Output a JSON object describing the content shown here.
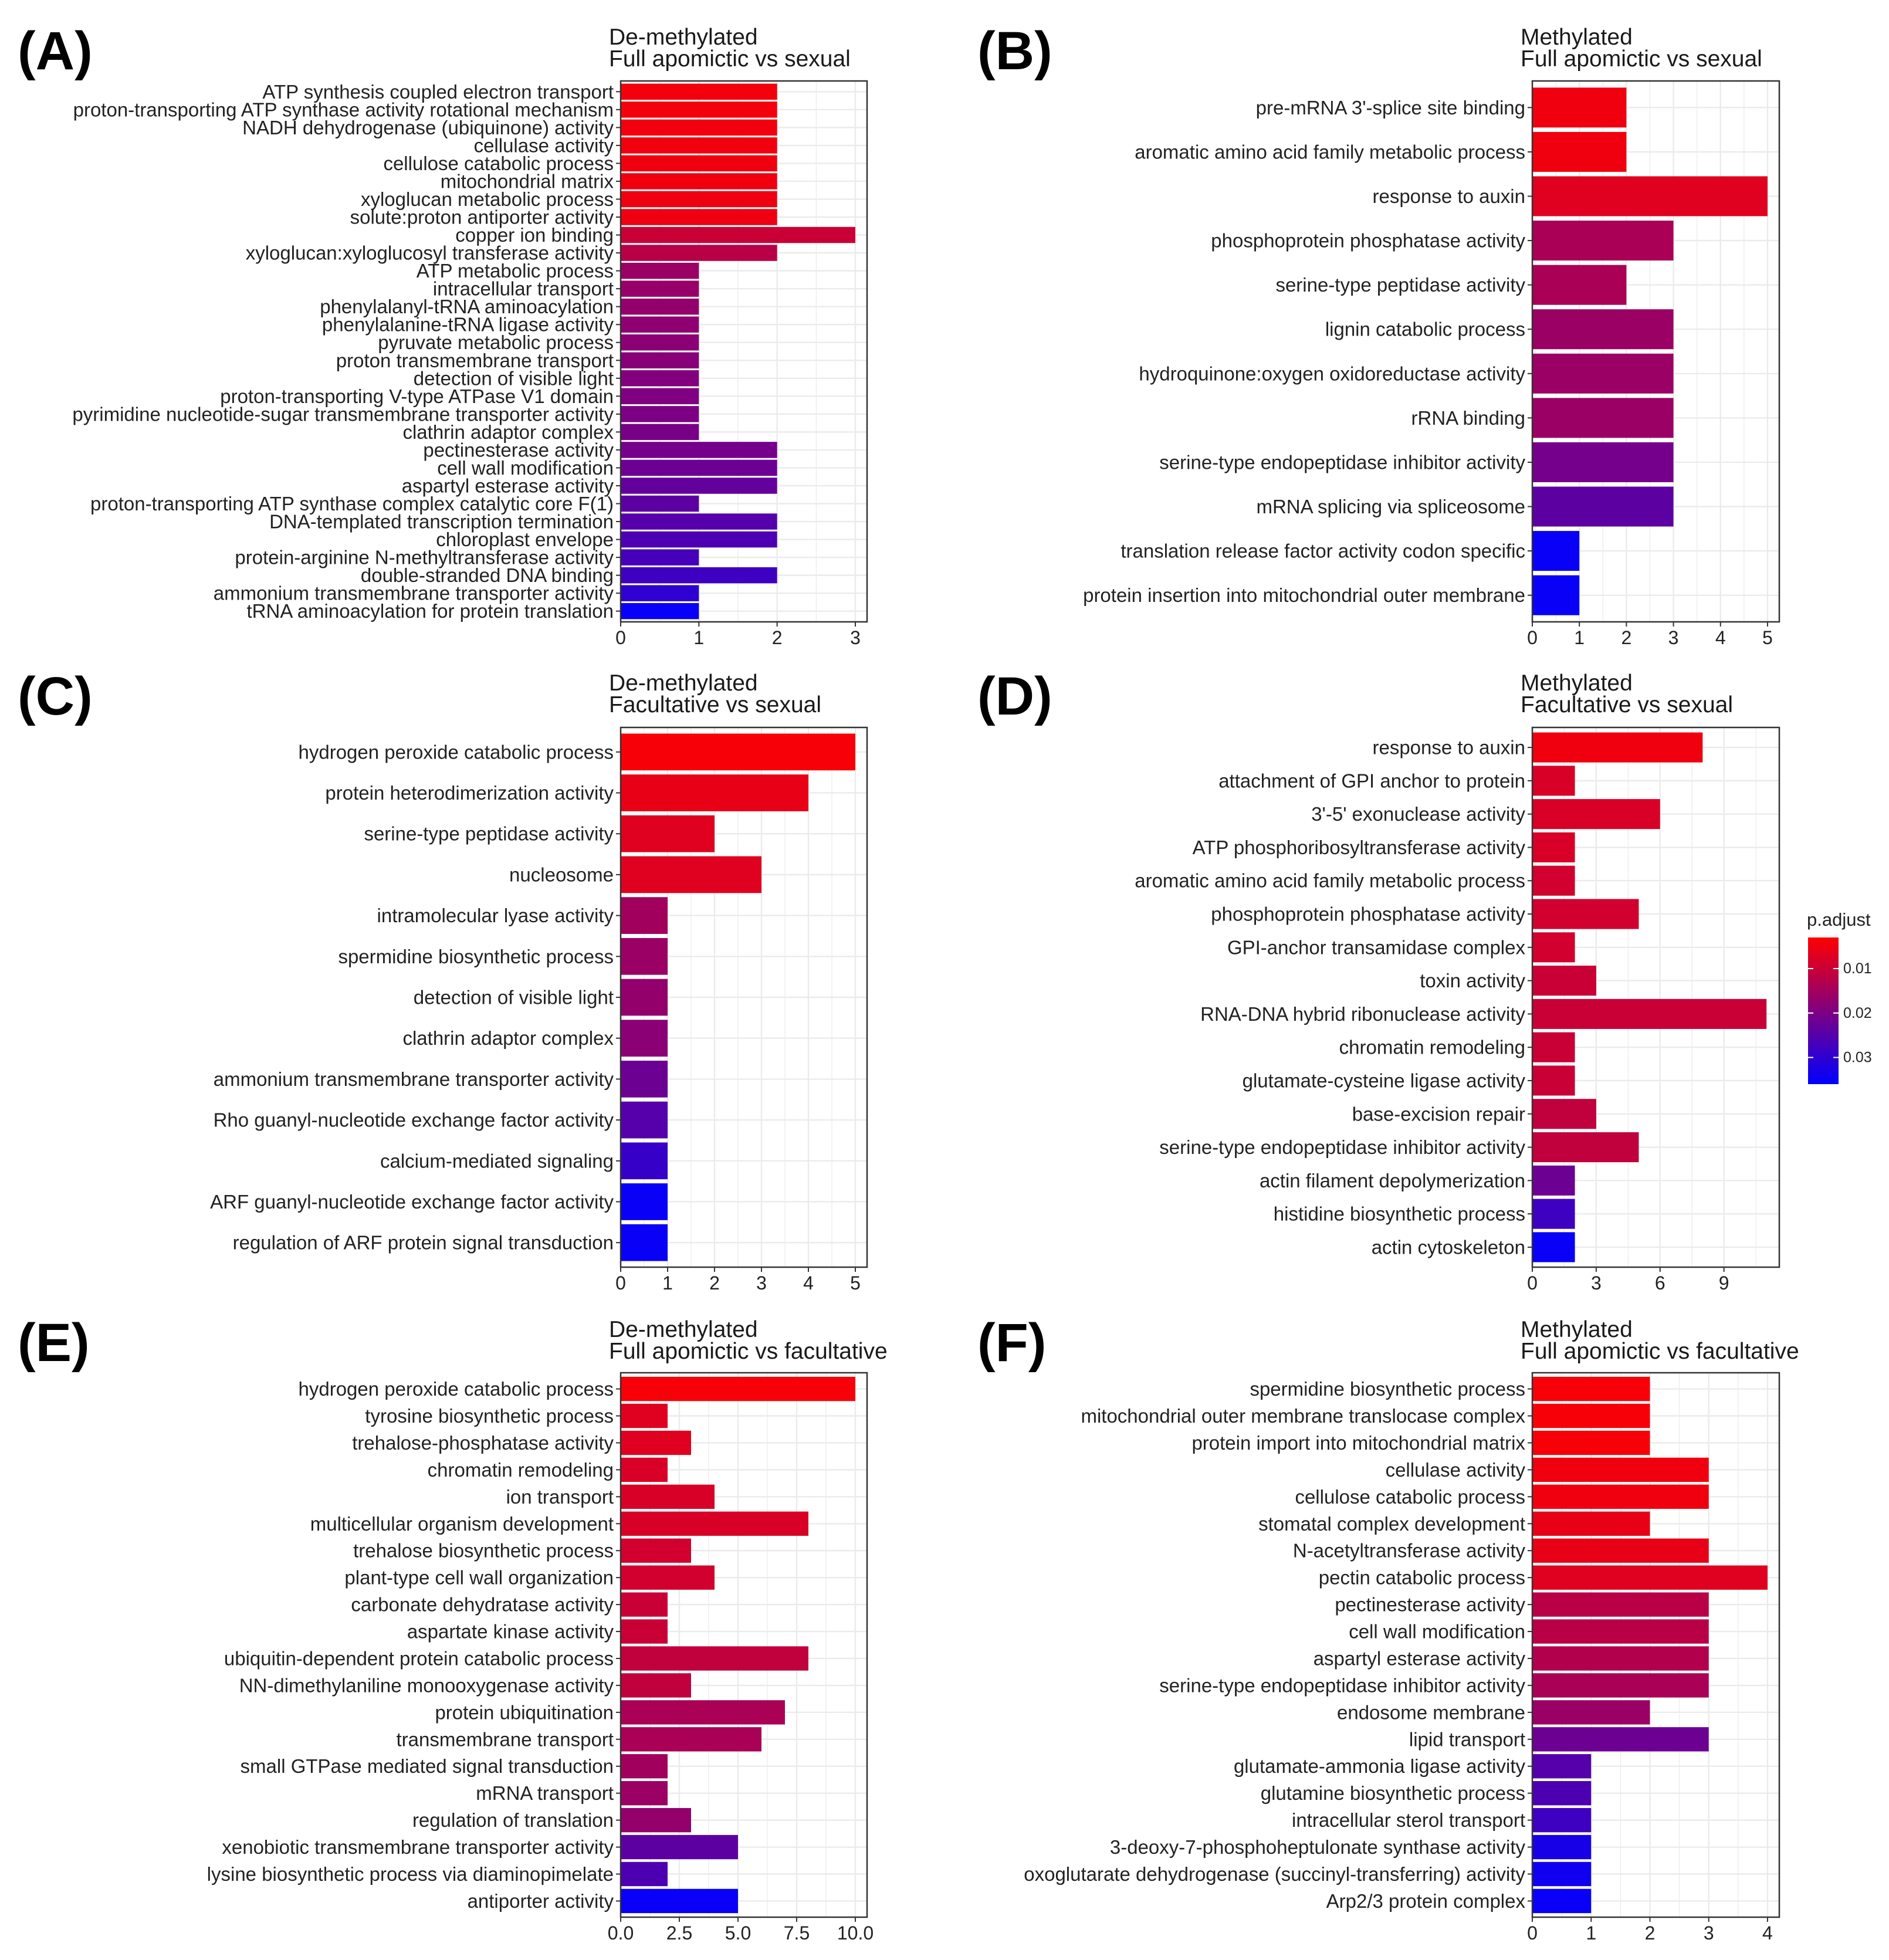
{
  "chart_data": [
    {
      "id": "A",
      "type": "bar",
      "orientation": "horizontal",
      "panel_label": "(A)",
      "title": "De-methylated",
      "subtitle": "Full apomictic vs sexual",
      "xlim": [
        0,
        3.15
      ],
      "xticks": [
        0,
        1,
        2,
        3
      ],
      "xtick_labels": [
        "0",
        "1",
        "2",
        "3"
      ],
      "categories": [
        "ATP synthesis coupled electron transport",
        "proton-transporting ATP synthase activity rotational mechanism",
        "NADH dehydrogenase (ubiquinone) activity",
        "cellulase activity",
        "cellulose catabolic process",
        "mitochondrial matrix",
        "xyloglucan metabolic process",
        "solute:proton antiporter activity",
        "copper ion binding",
        "xyloglucan:xyloglucosyl transferase activity",
        "ATP metabolic process",
        "intracellular transport",
        "phenylalanyl-tRNA aminoacylation",
        "phenylalanine-tRNA ligase activity",
        "pyruvate metabolic process",
        "proton transmembrane transport",
        "detection of visible light",
        "proton-transporting V-type ATPase V1 domain",
        "pyrimidine nucleotide-sugar transmembrane transporter activity",
        "clathrin adaptor complex",
        "pectinesterase activity",
        "cell wall modification",
        "aspartyl esterase activity",
        "proton-transporting ATP synthase complex catalytic core F(1)",
        "DNA-templated transcription termination",
        "chloroplast envelope",
        "protein-arginine N-methyltransferase activity",
        "double-stranded DNA binding",
        "ammonium transmembrane transporter activity",
        "tRNA aminoacylation for protein translation"
      ],
      "values": [
        2,
        2,
        2,
        2,
        2,
        2,
        2,
        2,
        3,
        2,
        1,
        1,
        1,
        1,
        1,
        1,
        1,
        1,
        1,
        1,
        2,
        2,
        2,
        1,
        2,
        2,
        1,
        2,
        1,
        1
      ],
      "p_adjust": [
        0.0045,
        0.0046,
        0.0047,
        0.0048,
        0.0049,
        0.005,
        0.0051,
        0.0052,
        0.01,
        0.012,
        0.016,
        0.0165,
        0.017,
        0.0175,
        0.018,
        0.0185,
        0.019,
        0.0195,
        0.02,
        0.0205,
        0.021,
        0.022,
        0.023,
        0.024,
        0.025,
        0.026,
        0.027,
        0.028,
        0.03,
        0.035
      ]
    },
    {
      "id": "B",
      "type": "bar",
      "orientation": "horizontal",
      "panel_label": "(B)",
      "title": "Methylated",
      "subtitle": "Full apomictic vs sexual",
      "xlim": [
        0,
        5.25
      ],
      "xticks": [
        0,
        1,
        2,
        3,
        4,
        5
      ],
      "xtick_labels": [
        "0",
        "1",
        "2",
        "3",
        "4",
        "5"
      ],
      "categories": [
        "pre-mRNA 3'-splice site binding",
        "aromatic amino acid family metabolic process",
        "response to auxin",
        "phosphoprotein phosphatase activity",
        "serine-type peptidase activity",
        "lignin catabolic process",
        "hydroquinone:oxygen oxidoreductase activity",
        "rRNA binding",
        "serine-type endopeptidase inhibitor activity",
        "mRNA splicing via spliceosome",
        "translation release factor activity codon specific",
        "protein insertion into mitochondrial outer membrane"
      ],
      "values": [
        2,
        2,
        5,
        3,
        2,
        3,
        3,
        3,
        3,
        3,
        1,
        1
      ],
      "p_adjust": [
        0.005,
        0.005,
        0.007,
        0.014,
        0.014,
        0.016,
        0.016,
        0.016,
        0.021,
        0.024,
        0.035,
        0.035
      ]
    },
    {
      "id": "C",
      "type": "bar",
      "orientation": "horizontal",
      "panel_label": "(C)",
      "title": "De-methylated",
      "subtitle": "Facultative vs sexual",
      "xlim": [
        0,
        5.25
      ],
      "xticks": [
        0,
        1,
        2,
        3,
        4,
        5
      ],
      "xtick_labels": [
        "0",
        "1",
        "2",
        "3",
        "4",
        "5"
      ],
      "categories": [
        "hydrogen peroxide catabolic process",
        "protein heterodimerization activity",
        "serine-type peptidase activity",
        "nucleosome",
        "intramolecular lyase activity",
        "spermidine biosynthetic process",
        "detection of visible light",
        "clathrin adaptor complex",
        "ammonium transmembrane transporter activity",
        "Rho guanyl-nucleotide exchange factor activity",
        "calcium-mediated signaling",
        "ARF guanyl-nucleotide exchange factor activity",
        "regulation of ARF protein signal transduction"
      ],
      "values": [
        5,
        4,
        2,
        3,
        1,
        1,
        1,
        1,
        1,
        1,
        1,
        1,
        1
      ],
      "p_adjust": [
        0.004,
        0.006,
        0.007,
        0.007,
        0.015,
        0.016,
        0.017,
        0.018,
        0.022,
        0.025,
        0.029,
        0.035,
        0.035
      ]
    },
    {
      "id": "D",
      "type": "bar",
      "orientation": "horizontal",
      "panel_label": "(D)",
      "title": "Methylated",
      "subtitle": "Facultative vs sexual",
      "xlim": [
        0,
        11.6
      ],
      "xticks": [
        0,
        3,
        6,
        9
      ],
      "xtick_labels": [
        "0",
        "3",
        "6",
        "9"
      ],
      "categories": [
        "response to auxin",
        "attachment of GPI anchor to protein",
        "3'-5' exonuclease activity",
        "ATP phosphoribosyltransferase activity",
        "aromatic amino acid family metabolic process",
        "phosphoprotein phosphatase activity",
        "GPI-anchor transamidase complex",
        "toxin activity",
        "RNA-DNA hybrid ribonuclease activity",
        "chromatin remodeling",
        "glutamate-cysteine ligase activity",
        "base-excision repair",
        "serine-type endopeptidase inhibitor activity",
        "actin filament depolymerization",
        "histidine biosynthetic process",
        "actin cytoskeleton"
      ],
      "values": [
        8,
        2,
        6,
        2,
        2,
        5,
        2,
        3,
        11,
        2,
        2,
        3,
        5,
        2,
        2,
        2
      ],
      "p_adjust": [
        0.005,
        0.008,
        0.008,
        0.008,
        0.009,
        0.009,
        0.009,
        0.01,
        0.01,
        0.01,
        0.01,
        0.011,
        0.011,
        0.022,
        0.028,
        0.035
      ]
    },
    {
      "id": "E",
      "type": "bar",
      "orientation": "horizontal",
      "panel_label": "(E)",
      "title": "De-methylated",
      "subtitle": "Full apomictic vs facultative",
      "xlim": [
        0,
        10.5
      ],
      "xticks": [
        0,
        2.5,
        5,
        7.5,
        10
      ],
      "xtick_labels": [
        "0.0",
        "2.5",
        "5.0",
        "7.5",
        "10.0"
      ],
      "categories": [
        "hydrogen peroxide catabolic process",
        "tyrosine biosynthetic process",
        "trehalose-phosphatase activity",
        "chromatin remodeling",
        "ion transport",
        "multicellular organism development",
        "trehalose biosynthetic process",
        "plant-type cell wall organization",
        "carbonate dehydratase activity",
        "aspartate kinase activity",
        "ubiquitin-dependent protein catabolic process",
        "NN-dimethylaniline monooxygenase activity",
        "protein ubiquitination",
        "transmembrane transport",
        "small GTPase mediated signal transduction",
        "mRNA transport",
        "regulation of translation",
        "xenobiotic transmembrane transporter activity",
        "lysine biosynthetic process via diaminopimelate",
        "antiporter activity"
      ],
      "values": [
        10,
        2,
        3,
        2,
        4,
        8,
        3,
        4,
        2,
        2,
        8,
        3,
        7,
        6,
        2,
        2,
        3,
        5,
        2,
        5
      ],
      "p_adjust": [
        0.004,
        0.007,
        0.007,
        0.008,
        0.008,
        0.008,
        0.009,
        0.009,
        0.01,
        0.01,
        0.011,
        0.011,
        0.014,
        0.014,
        0.015,
        0.016,
        0.017,
        0.024,
        0.026,
        0.035
      ]
    },
    {
      "id": "F",
      "type": "bar",
      "orientation": "horizontal",
      "panel_label": "(F)",
      "title": "Methylated",
      "subtitle": "Full apomictic vs facultative",
      "xlim": [
        0,
        4.2
      ],
      "xticks": [
        0,
        1,
        2,
        3,
        4
      ],
      "xtick_labels": [
        "0",
        "1",
        "2",
        "3",
        "4"
      ],
      "categories": [
        "spermidine biosynthetic process",
        "mitochondrial outer membrane translocase complex",
        "protein import into mitochondrial matrix",
        "cellulase activity",
        "cellulose catabolic process",
        "stomatal complex development",
        "N-acetyltransferase activity",
        "pectin catabolic process",
        "pectinesterase activity",
        "cell wall modification",
        "aspartyl esterase activity",
        "serine-type endopeptidase inhibitor activity",
        "endosome membrane",
        "lipid transport",
        "glutamate-ammonia ligase activity",
        "glutamine biosynthetic process",
        "intracellular sterol transport",
        "3-deoxy-7-phosphoheptulonate synthase activity",
        "oxoglutarate dehydrogenase (succinyl-transferring) activity",
        "Arp2/3 protein complex"
      ],
      "values": [
        2,
        2,
        2,
        3,
        3,
        2,
        3,
        4,
        3,
        3,
        3,
        3,
        2,
        3,
        1,
        1,
        1,
        1,
        1,
        1
      ],
      "p_adjust": [
        0.004,
        0.004,
        0.004,
        0.005,
        0.005,
        0.006,
        0.006,
        0.007,
        0.012,
        0.012,
        0.013,
        0.014,
        0.016,
        0.022,
        0.025,
        0.026,
        0.028,
        0.033,
        0.034,
        0.035
      ]
    }
  ],
  "legend": {
    "title": "p.adjust",
    "ticks": [
      0.01,
      0.02,
      0.03
    ],
    "tick_labels": [
      "0.01",
      "0.02",
      "0.03"
    ],
    "range": [
      0.003,
      0.036
    ],
    "color_low_p": "#ff0000",
    "color_high_p": "#0000ff"
  },
  "style": {
    "panel_bg": "#ffffff",
    "grid_color": "#ebebeb",
    "border_color": "#333333",
    "text_color": "#222222"
  }
}
